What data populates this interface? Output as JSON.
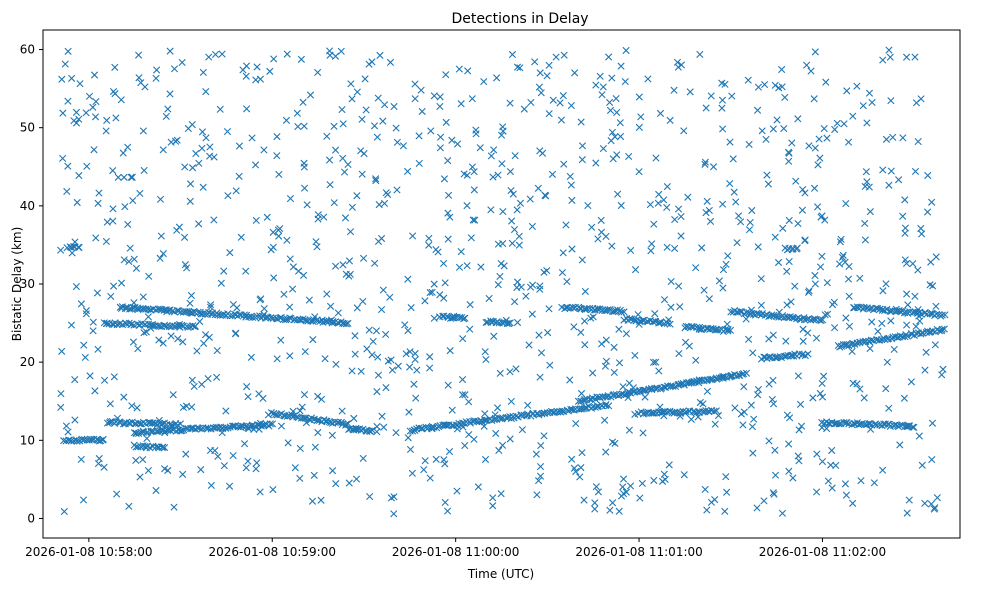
{
  "chart_data": {
    "type": "scatter",
    "title": "Detections in Delay",
    "xlabel": "Time (UTC)",
    "ylabel": "Bistatic Delay (km)",
    "x_unit": "UTC time (HH:MM:SS on 2026-01-08)",
    "xlim": [
      "10:57:45",
      "11:02:45"
    ],
    "ylim": [
      -2.5,
      62.5
    ],
    "x_ticks": [
      {
        "t": "10:58:00",
        "label": "2026-01-08 10:58:00"
      },
      {
        "t": "10:59:00",
        "label": "2026-01-08 10:59:00"
      },
      {
        "t": "11:00:00",
        "label": "2026-01-08 11:00:00"
      },
      {
        "t": "11:01:00",
        "label": "2026-01-08 11:01:00"
      },
      {
        "t": "11:02:00",
        "label": "2026-01-08 11:02:00"
      }
    ],
    "y_ticks": [
      0,
      10,
      20,
      30,
      40,
      50,
      60
    ],
    "grid": false,
    "legend": "none",
    "series_color": "#1f77b4",
    "marker": "x",
    "tracks": [
      {
        "from": [
          "10:57:52",
          10.0
        ],
        "to": [
          "10:58:05",
          10.0
        ]
      },
      {
        "from": [
          "10:58:06",
          12.3
        ],
        "to": [
          "10:58:30",
          12.0
        ]
      },
      {
        "from": [
          "10:58:15",
          11.0
        ],
        "to": [
          "10:59:00",
          12.0
        ]
      },
      {
        "from": [
          "10:58:15",
          9.3
        ],
        "to": [
          "10:58:25",
          9.0
        ]
      },
      {
        "from": [
          "10:59:00",
          13.5
        ],
        "to": [
          "10:59:25",
          12.0
        ]
      },
      {
        "from": [
          "10:59:25",
          11.5
        ],
        "to": [
          "10:59:33",
          11.2
        ]
      },
      {
        "from": [
          "10:59:45",
          11.3
        ],
        "to": [
          "11:00:50",
          14.5
        ]
      },
      {
        "from": [
          "11:00:40",
          15.0
        ],
        "to": [
          "11:01:35",
          18.5
        ]
      },
      {
        "from": [
          "11:01:00",
          13.5
        ],
        "to": [
          "11:01:25",
          13.7
        ]
      },
      {
        "from": [
          "11:02:00",
          12.3
        ],
        "to": [
          "11:02:30",
          11.8
        ]
      },
      {
        "from": [
          "10:58:10",
          27.0
        ],
        "to": [
          "10:59:25",
          25.0
        ]
      },
      {
        "from": [
          "10:58:05",
          25.0
        ],
        "to": [
          "10:58:35",
          24.5
        ]
      },
      {
        "from": [
          "11:00:35",
          27.0
        ],
        "to": [
          "11:00:55",
          26.5
        ]
      },
      {
        "from": [
          "11:00:55",
          25.5
        ],
        "to": [
          "11:01:10",
          25.0
        ]
      },
      {
        "from": [
          "11:01:15",
          24.5
        ],
        "to": [
          "11:01:30",
          24.0
        ]
      },
      {
        "from": [
          "11:01:30",
          26.5
        ],
        "to": [
          "11:02:00",
          25.3
        ]
      },
      {
        "from": [
          "11:02:05",
          22.0
        ],
        "to": [
          "11:02:40",
          24.2
        ]
      },
      {
        "from": [
          "11:02:10",
          27.0
        ],
        "to": [
          "11:02:40",
          26.0
        ]
      },
      {
        "from": [
          "10:59:55",
          25.8
        ],
        "to": [
          "11:00:03",
          25.6
        ]
      },
      {
        "from": [
          "11:00:10",
          25.2
        ],
        "to": [
          "11:00:18",
          25.0
        ]
      },
      {
        "from": [
          "11:01:40",
          20.5
        ],
        "to": [
          "11:01:55",
          21.0
        ]
      },
      {
        "from": [
          "10:57:53",
          34.7
        ],
        "to": [
          "10:57:57",
          34.7
        ]
      },
      {
        "from": [
          "11:01:48",
          34.5
        ],
        "to": [
          "11:01:52",
          34.5
        ]
      }
    ],
    "noise": {
      "count": 1100,
      "y_range": [
        0.5,
        60
      ],
      "x_range": [
        "10:57:50",
        "11:02:40"
      ]
    }
  }
}
